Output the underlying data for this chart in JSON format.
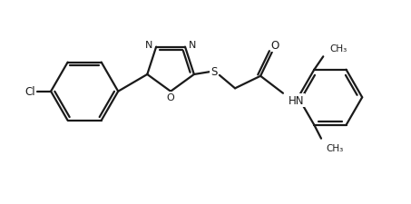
{
  "bg": "#ffffff",
  "lc": "#1a1a1a",
  "lw": 1.6,
  "fig_w": 4.53,
  "fig_h": 2.26,
  "dpi": 100,
  "xlim": [
    0,
    10
  ],
  "ylim": [
    0,
    5
  ]
}
